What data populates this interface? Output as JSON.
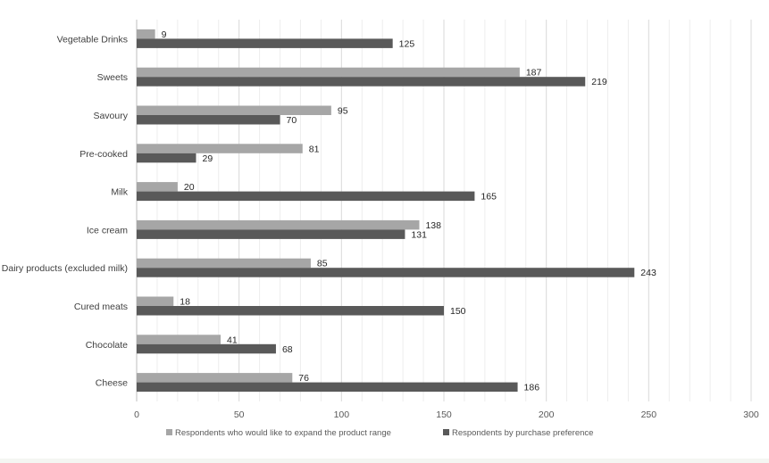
{
  "chart_data": {
    "type": "bar",
    "orientation": "horizontal",
    "title": "",
    "xlabel": "",
    "ylabel": "",
    "xlim": [
      0,
      300
    ],
    "x_ticks": [
      0,
      50,
      100,
      150,
      200,
      250,
      300
    ],
    "grid": true,
    "legend_position": "bottom",
    "categories": [
      "Vegetable Drinks",
      "Sweets",
      "Savoury",
      "Pre-cooked",
      "Milk",
      "Ice cream",
      "Dairy products (excluded milk)",
      "Cured meats",
      "Chocolate",
      "Cheese"
    ],
    "series": [
      {
        "name": "Respondents who would like to expand the product range",
        "color": "#a6a6a6",
        "values": [
          9,
          187,
          95,
          81,
          20,
          138,
          85,
          18,
          41,
          76
        ]
      },
      {
        "name": "Respondents by purchase preference",
        "color": "#595959",
        "values": [
          125,
          219,
          70,
          29,
          165,
          131,
          243,
          150,
          68,
          186
        ]
      }
    ]
  }
}
